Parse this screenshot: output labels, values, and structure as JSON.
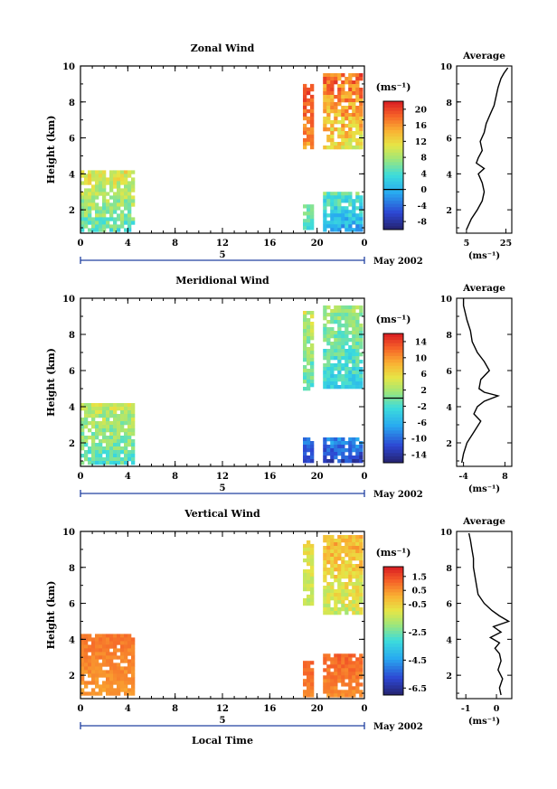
{
  "chart_data": [
    {
      "type": "heatmap",
      "title": "Zonal Wind",
      "ylabel": "Height (km)",
      "unit_label": "(ms⁻¹)",
      "x_ticks": [
        "0",
        "4",
        "8",
        "12",
        "16",
        "20",
        "0"
      ],
      "y_ticks": [
        "2",
        "4",
        "6",
        "8",
        "10"
      ],
      "ylim": [
        0.7,
        10
      ],
      "xlim": [
        0,
        24
      ],
      "day_label": "5",
      "date_label": "May 2002",
      "colorbar_ticks": [
        "-8",
        "-4",
        "0",
        "4",
        "8",
        "12",
        "16",
        "20"
      ],
      "colorbar_range": [
        -10,
        22
      ],
      "zero_line_value": 0,
      "data_blocks": [
        {
          "x": [
            0,
            4.3
          ],
          "y": [
            0.9,
            4.2
          ],
          "value_range": [
            2,
            14
          ]
        },
        {
          "x": [
            18.8,
            19.7
          ],
          "y": [
            0.9,
            2.3
          ],
          "value_range": [
            2,
            8
          ]
        },
        {
          "x": [
            20.5,
            23.8
          ],
          "y": [
            0.9,
            3.0
          ],
          "value_range": [
            -4,
            8
          ]
        },
        {
          "x": [
            18.8,
            19.7
          ],
          "y": [
            5.5,
            9.0
          ],
          "value_range": [
            14,
            22
          ]
        },
        {
          "x": [
            20.5,
            23.8
          ],
          "y": [
            5.5,
            9.6
          ],
          "value_range": [
            8,
            22
          ]
        }
      ],
      "average": {
        "title": "Average",
        "xlabel": "(ms⁻¹)",
        "x_ticks": [
          "5",
          "25"
        ],
        "xlim": [
          0,
          28
        ],
        "height": [
          0.9,
          1.5,
          2.0,
          2.5,
          3.0,
          3.5,
          4.0,
          4.3,
          4.6,
          4.9,
          5.3,
          5.8,
          6.3,
          6.8,
          7.3,
          7.8,
          8.3,
          8.8,
          9.3,
          9.6,
          9.9
        ],
        "value": [
          5,
          7.5,
          10.5,
          13,
          14,
          13,
          11,
          14,
          10,
          11,
          13,
          12,
          14,
          15,
          17,
          19,
          20,
          21,
          22.5,
          24,
          26
        ]
      }
    },
    {
      "type": "heatmap",
      "title": "Meridional Wind",
      "ylabel": "Height (km)",
      "unit_label": "(ms⁻¹)",
      "x_ticks": [
        "0",
        "4",
        "8",
        "12",
        "16",
        "20",
        "0"
      ],
      "y_ticks": [
        "2",
        "4",
        "6",
        "8",
        "10"
      ],
      "ylim": [
        0.7,
        10
      ],
      "xlim": [
        0,
        24
      ],
      "day_label": "5",
      "date_label": "May 2002",
      "colorbar_ticks": [
        "-14",
        "-10",
        "-6",
        "-2",
        "2",
        "6",
        "10",
        "14"
      ],
      "colorbar_range": [
        -16,
        16
      ],
      "zero_line_value": 0,
      "data_blocks": [
        {
          "x": [
            0,
            4.3
          ],
          "y": [
            0.9,
            4.2
          ],
          "value_range": [
            -4,
            6
          ]
        },
        {
          "x": [
            18.8,
            19.7
          ],
          "y": [
            0.9,
            2.3
          ],
          "value_range": [
            -14,
            -8
          ]
        },
        {
          "x": [
            20.5,
            23.8
          ],
          "y": [
            0.9,
            2.3
          ],
          "value_range": [
            -16,
            -6
          ]
        },
        {
          "x": [
            18.8,
            19.7
          ],
          "y": [
            5.0,
            9.3
          ],
          "value_range": [
            -4,
            6
          ]
        },
        {
          "x": [
            20.5,
            23.8
          ],
          "y": [
            5.0,
            9.6
          ],
          "value_range": [
            -6,
            4
          ]
        }
      ],
      "average": {
        "title": "Average",
        "xlabel": "(ms⁻¹)",
        "x_ticks": [
          "-4",
          "8"
        ],
        "xlim": [
          -6,
          10
        ],
        "height": [
          0.9,
          1.4,
          2.0,
          2.6,
          3.2,
          3.6,
          4.0,
          4.3,
          4.6,
          4.8,
          5.0,
          5.5,
          6.0,
          6.5,
          7.0,
          7.6,
          8.2,
          8.8,
          9.2,
          9.6,
          10.0
        ],
        "value": [
          -4.5,
          -4,
          -3,
          -1,
          1,
          -1,
          0,
          2,
          6,
          2,
          0.5,
          1,
          3.5,
          2,
          0,
          -1.5,
          -2,
          -3,
          -3.5,
          -4,
          -4
        ]
      }
    },
    {
      "type": "heatmap",
      "title": "Vertical Wind",
      "ylabel": "Height (km)",
      "xlabel": "Local Time",
      "unit_label": "(ms⁻¹)",
      "x_ticks": [
        "0",
        "4",
        "8",
        "12",
        "16",
        "20",
        "0"
      ],
      "y_ticks": [
        "2",
        "4",
        "6",
        "8",
        "10"
      ],
      "ylim": [
        0.7,
        10
      ],
      "xlim": [
        0,
        24
      ],
      "day_label": "5",
      "date_label": "May 2002",
      "colorbar_ticks": [
        "-6.5",
        "-4.5",
        "-2.5",
        "-0.5",
        "0.5",
        "1.5"
      ],
      "colorbar_range": [
        -7,
        2.2
      ],
      "data_blocks": [
        {
          "x": [
            0,
            4.3
          ],
          "y": [
            0.9,
            4.3
          ],
          "value_range": [
            0.2,
            1.2
          ]
        },
        {
          "x": [
            18.8,
            19.7
          ],
          "y": [
            0.9,
            2.8
          ],
          "value_range": [
            0.5,
            1.5
          ]
        },
        {
          "x": [
            20.5,
            23.8
          ],
          "y": [
            0.9,
            3.2
          ],
          "value_range": [
            0.3,
            1.5
          ]
        },
        {
          "x": [
            18.8,
            19.7
          ],
          "y": [
            6.0,
            9.5
          ],
          "value_range": [
            -2.0,
            -0.3
          ]
        },
        {
          "x": [
            20.5,
            23.8
          ],
          "y": [
            5.5,
            9.8
          ],
          "value_range": [
            -2.0,
            0.8
          ]
        }
      ],
      "average": {
        "title": "Average",
        "xlabel": "(ms⁻¹)",
        "x_ticks": [
          "-1",
          "0"
        ],
        "xlim": [
          -1.3,
          0.5
        ],
        "height": [
          0.9,
          1.3,
          1.8,
          2.3,
          2.8,
          3.2,
          3.5,
          3.8,
          4.1,
          4.4,
          4.7,
          5.0,
          5.3,
          5.6,
          6.0,
          6.5,
          7.0,
          7.5,
          8.0,
          8.5,
          9.0,
          9.5,
          9.9
        ],
        "value": [
          0.15,
          0.1,
          0.2,
          0.05,
          0.15,
          0.1,
          -0.05,
          0.1,
          -0.2,
          0.15,
          -0.1,
          0.4,
          0.1,
          -0.15,
          -0.4,
          -0.6,
          -0.65,
          -0.7,
          -0.75,
          -0.75,
          -0.8,
          -0.85,
          -0.9
        ]
      }
    }
  ]
}
